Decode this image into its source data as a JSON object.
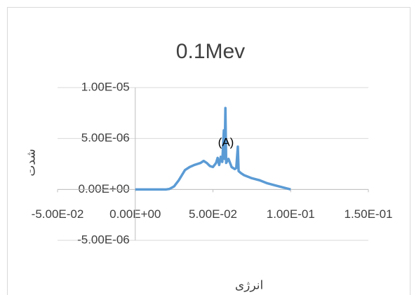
{
  "chart_data": {
    "type": "line",
    "title": "0.1Mev",
    "x_label": "انرژی",
    "y_label": "شدت",
    "annotation": "(A)",
    "color": "#5b9bd5",
    "grid": true,
    "xlim": [
      -0.05,
      0.15
    ],
    "ylim": [
      -5e-06,
      1e-05
    ],
    "xticks": [
      {
        "value": -0.05,
        "label": "-5.00E-02"
      },
      {
        "value": 0,
        "label": "0.00E+00"
      },
      {
        "value": 0.05,
        "label": "5.00E-02"
      },
      {
        "value": 0.1,
        "label": "1.00E-01"
      },
      {
        "value": 0.15,
        "label": "1.50E-01"
      }
    ],
    "yticks": [
      {
        "value": -5e-06,
        "label": "-5.00E-06"
      },
      {
        "value": 0,
        "label": "0.00E+00"
      },
      {
        "value": 5e-06,
        "label": "5.00E-06"
      },
      {
        "value": 1e-05,
        "label": "1.00E-05"
      }
    ],
    "x": [
      0,
      0.005,
      0.01,
      0.015,
      0.02,
      0.022,
      0.025,
      0.028,
      0.03,
      0.032,
      0.035,
      0.038,
      0.04,
      0.042,
      0.044,
      0.046,
      0.048,
      0.05,
      0.052,
      0.053,
      0.054,
      0.055,
      0.056,
      0.057,
      0.0575,
      0.058,
      0.0585,
      0.06,
      0.062,
      0.064,
      0.065,
      0.066,
      0.0665,
      0.068,
      0.07,
      0.075,
      0.08,
      0.085,
      0.09,
      0.095,
      0.1
    ],
    "values": [
      0,
      0,
      0,
      0,
      0,
      5e-08,
      3e-07,
      9e-07,
      1.4e-06,
      1.9e-06,
      2.2e-06,
      2.4e-06,
      2.5e-06,
      2.6e-06,
      2.8e-06,
      2.6e-06,
      2.3e-06,
      2.2e-06,
      2.6e-06,
      3.1e-06,
      2.4e-06,
      3.2e-06,
      2.7e-06,
      5.8e-06,
      3e-06,
      8e-06,
      2.6e-06,
      3e-06,
      2.2e-06,
      2e-06,
      2.1e-06,
      4.2e-06,
      1.8e-06,
      1.6e-06,
      1.4e-06,
      1.1e-06,
      9e-07,
      6e-07,
      4e-07,
      2e-07,
      0
    ]
  }
}
